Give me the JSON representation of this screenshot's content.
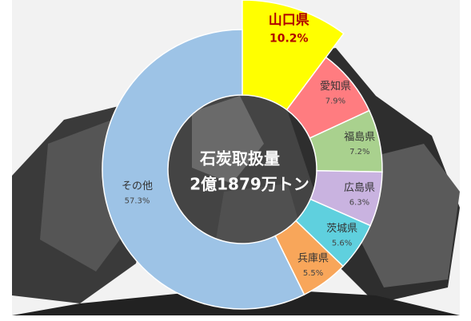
{
  "chart_data": {
    "type": "donut",
    "center_label": [
      "石炭取扱量",
      "2億1879万トン"
    ],
    "categories": [
      "山口県",
      "愛知県",
      "福島県",
      "広島県",
      "茨城県",
      "兵庫県",
      "その他"
    ],
    "values": [
      10.2,
      7.9,
      7.2,
      6.3,
      5.6,
      5.5,
      57.3
    ],
    "value_labels": [
      "10.2%",
      "7.9%",
      "7.2%",
      "6.3%",
      "5.6%",
      "5.5%",
      "57.3%"
    ],
    "colors": [
      "#ffff00",
      "#ff7c80",
      "#a9d18e",
      "#c9b3e0",
      "#5fd0de",
      "#f8a65a",
      "#9dc3e6"
    ]
  }
}
